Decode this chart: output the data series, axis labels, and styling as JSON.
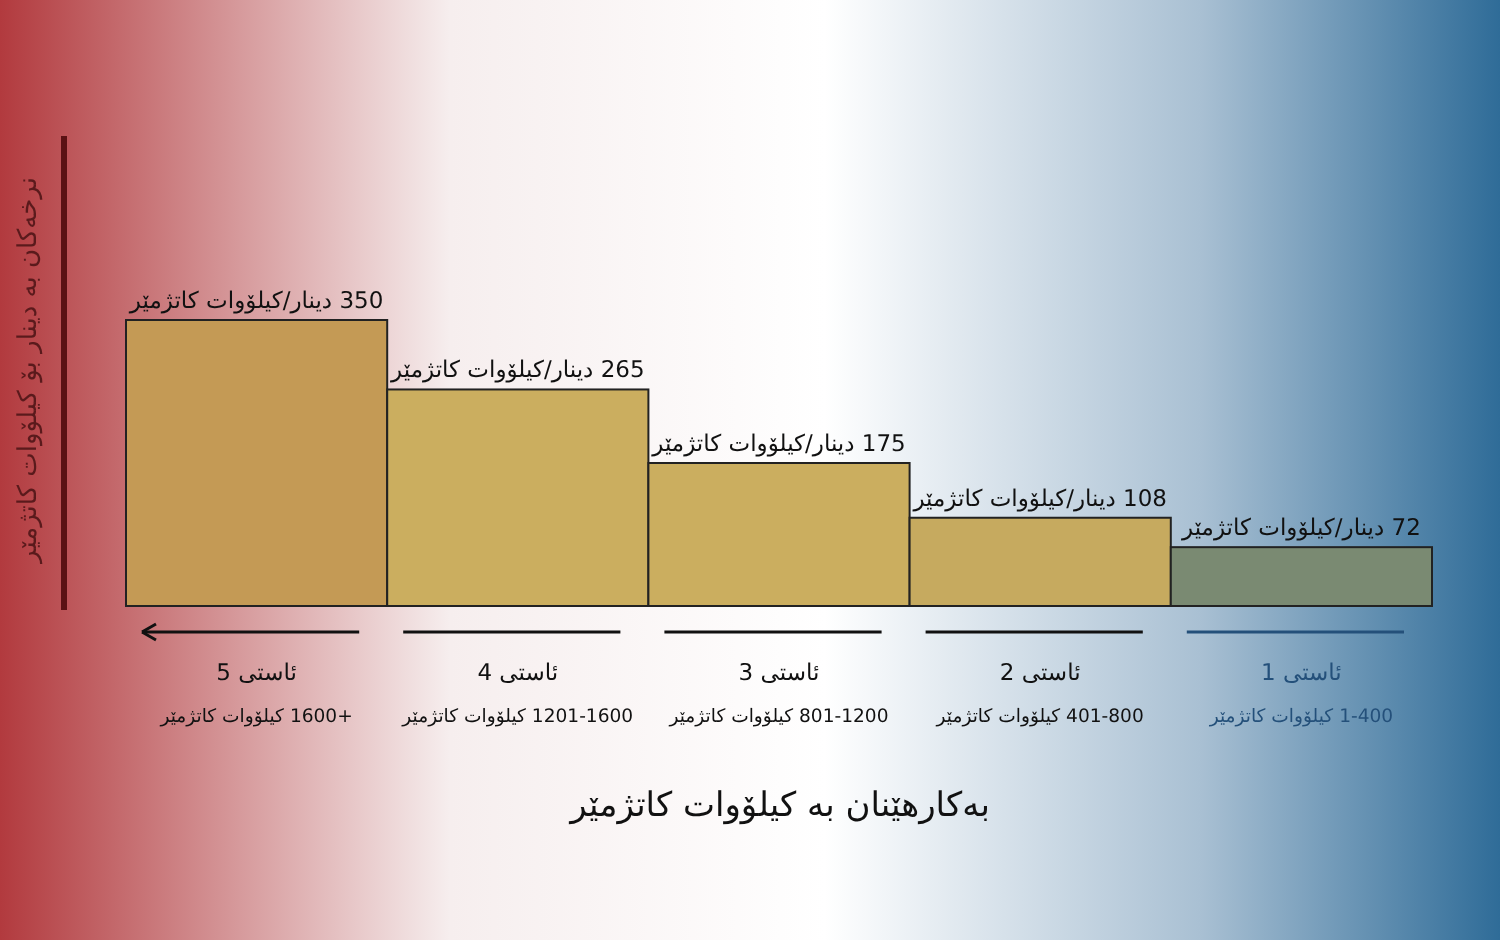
{
  "chart_data": {
    "type": "bar",
    "xlabel": "بەکارهێنان بە کیلۆوات کاتژمێر",
    "ylabel": "نرخەکان بە دینار بۆ کیلۆوات کاتژمێر",
    "categories": [
      "ئاستی 5\n+1600 کیلۆوات کاتژمێر",
      "ئاستی 4\n1201-1600 کیلۆوات کاتژمێر",
      "ئاستی 3\n801-1200 کیلۆوات کاتژمێر",
      "ئاستی 2\n401-800 کیلۆوات کاتژمێر",
      "ئاستی 1\n1-400 کیلۆوات کاتژمێر"
    ],
    "values": [
      350,
      265,
      175,
      108,
      72
    ],
    "colors": [
      "#c49a55",
      "#cbae5f",
      "#cbae5f",
      "#c6aa5f",
      "#7a8a72"
    ],
    "value_labels": [
      "350 دینار/کیلۆوات کاتژمێر",
      "265 دینار/کیلۆوات کاتژمێر",
      "175 دینار/کیلۆوات کاتژمێر",
      "108 دینار/کیلۆوات کاتژمێر",
      "72 دینار/کیلۆوات کاتژمێر"
    ]
  }
}
